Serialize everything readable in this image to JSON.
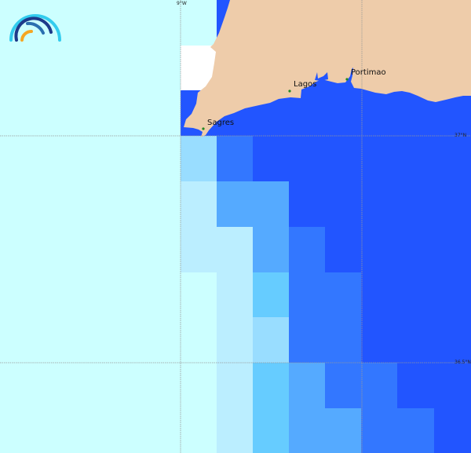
{
  "map": {
    "colors": {
      "land": "#eeccaa",
      "ocean_deep": "#2255ff",
      "nodata": "#ffffff",
      "town_dot": "#228822"
    },
    "legend_scale": [
      "#ccffff",
      "#bbeeff",
      "#99ddff",
      "#66ccff",
      "#55aaff",
      "#3377ff",
      "#2255ff"
    ],
    "grid_cells": [
      [
        2,
        5,
        6,
        6,
        6,
        6,
        6,
        6
      ],
      [
        1,
        4,
        4,
        6,
        6,
        6,
        6,
        6
      ],
      [
        1,
        1,
        4,
        5,
        6,
        6,
        6,
        6
      ],
      [
        0,
        1,
        3,
        5,
        5,
        6,
        6,
        6
      ],
      [
        0,
        1,
        2,
        5,
        5,
        6,
        6,
        6
      ],
      [
        0,
        1,
        3,
        4,
        5,
        5,
        6,
        6
      ],
      [
        0,
        1,
        3,
        4,
        4,
        5,
        5,
        6
      ]
    ],
    "towns": [
      {
        "name": "Sagres"
      },
      {
        "name": "Lagos"
      },
      {
        "name": "Portimao"
      }
    ],
    "graticule": {
      "lon_label": "9°W",
      "lat_labels": [
        "37°N",
        "36.5°N"
      ]
    }
  }
}
